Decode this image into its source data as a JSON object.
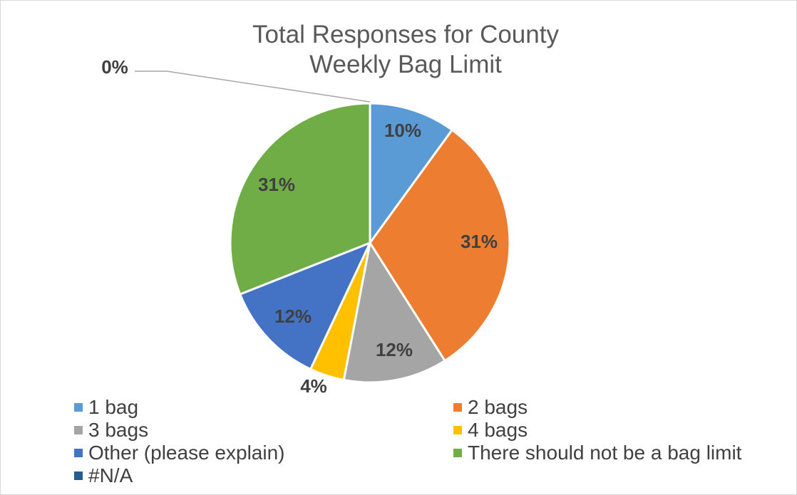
{
  "chart_data": {
    "type": "pie",
    "title": "Total Responses for County Weekly Bag Limit",
    "title_lines": [
      "Total Responses for County",
      "Weekly Bag Limit"
    ],
    "slices": [
      {
        "label": "1 bag",
        "value": 10,
        "value_label": "10%",
        "color": "#5b9bd5"
      },
      {
        "label": "2 bags",
        "value": 31,
        "value_label": "31%",
        "color": "#ed7d31"
      },
      {
        "label": "3 bags",
        "value": 12,
        "value_label": "12%",
        "color": "#a5a5a5"
      },
      {
        "label": "4 bags",
        "value": 4,
        "value_label": "4%",
        "color": "#ffc000"
      },
      {
        "label": "Other (please explain)",
        "value": 12,
        "value_label": "12%",
        "color": "#4472c4"
      },
      {
        "label": "There should not be a bag limit",
        "value": 31,
        "value_label": "31%",
        "color": "#70ad47"
      },
      {
        "label": "#N/A",
        "value": 0,
        "value_label": "0%",
        "color": "#255e91"
      }
    ],
    "legend_position": "bottom"
  }
}
